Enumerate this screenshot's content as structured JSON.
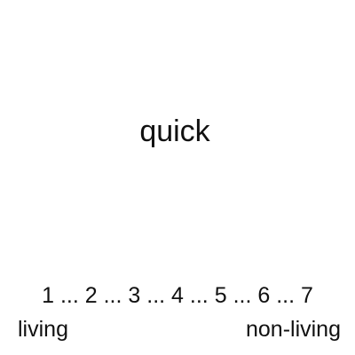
{
  "stimulus": {
    "word": "quick"
  },
  "scale": {
    "points": [
      "1",
      "2",
      "3",
      "4",
      "5",
      "6",
      "7"
    ],
    "separator": "...",
    "left_anchor": "living",
    "right_anchor": "non-living"
  }
}
